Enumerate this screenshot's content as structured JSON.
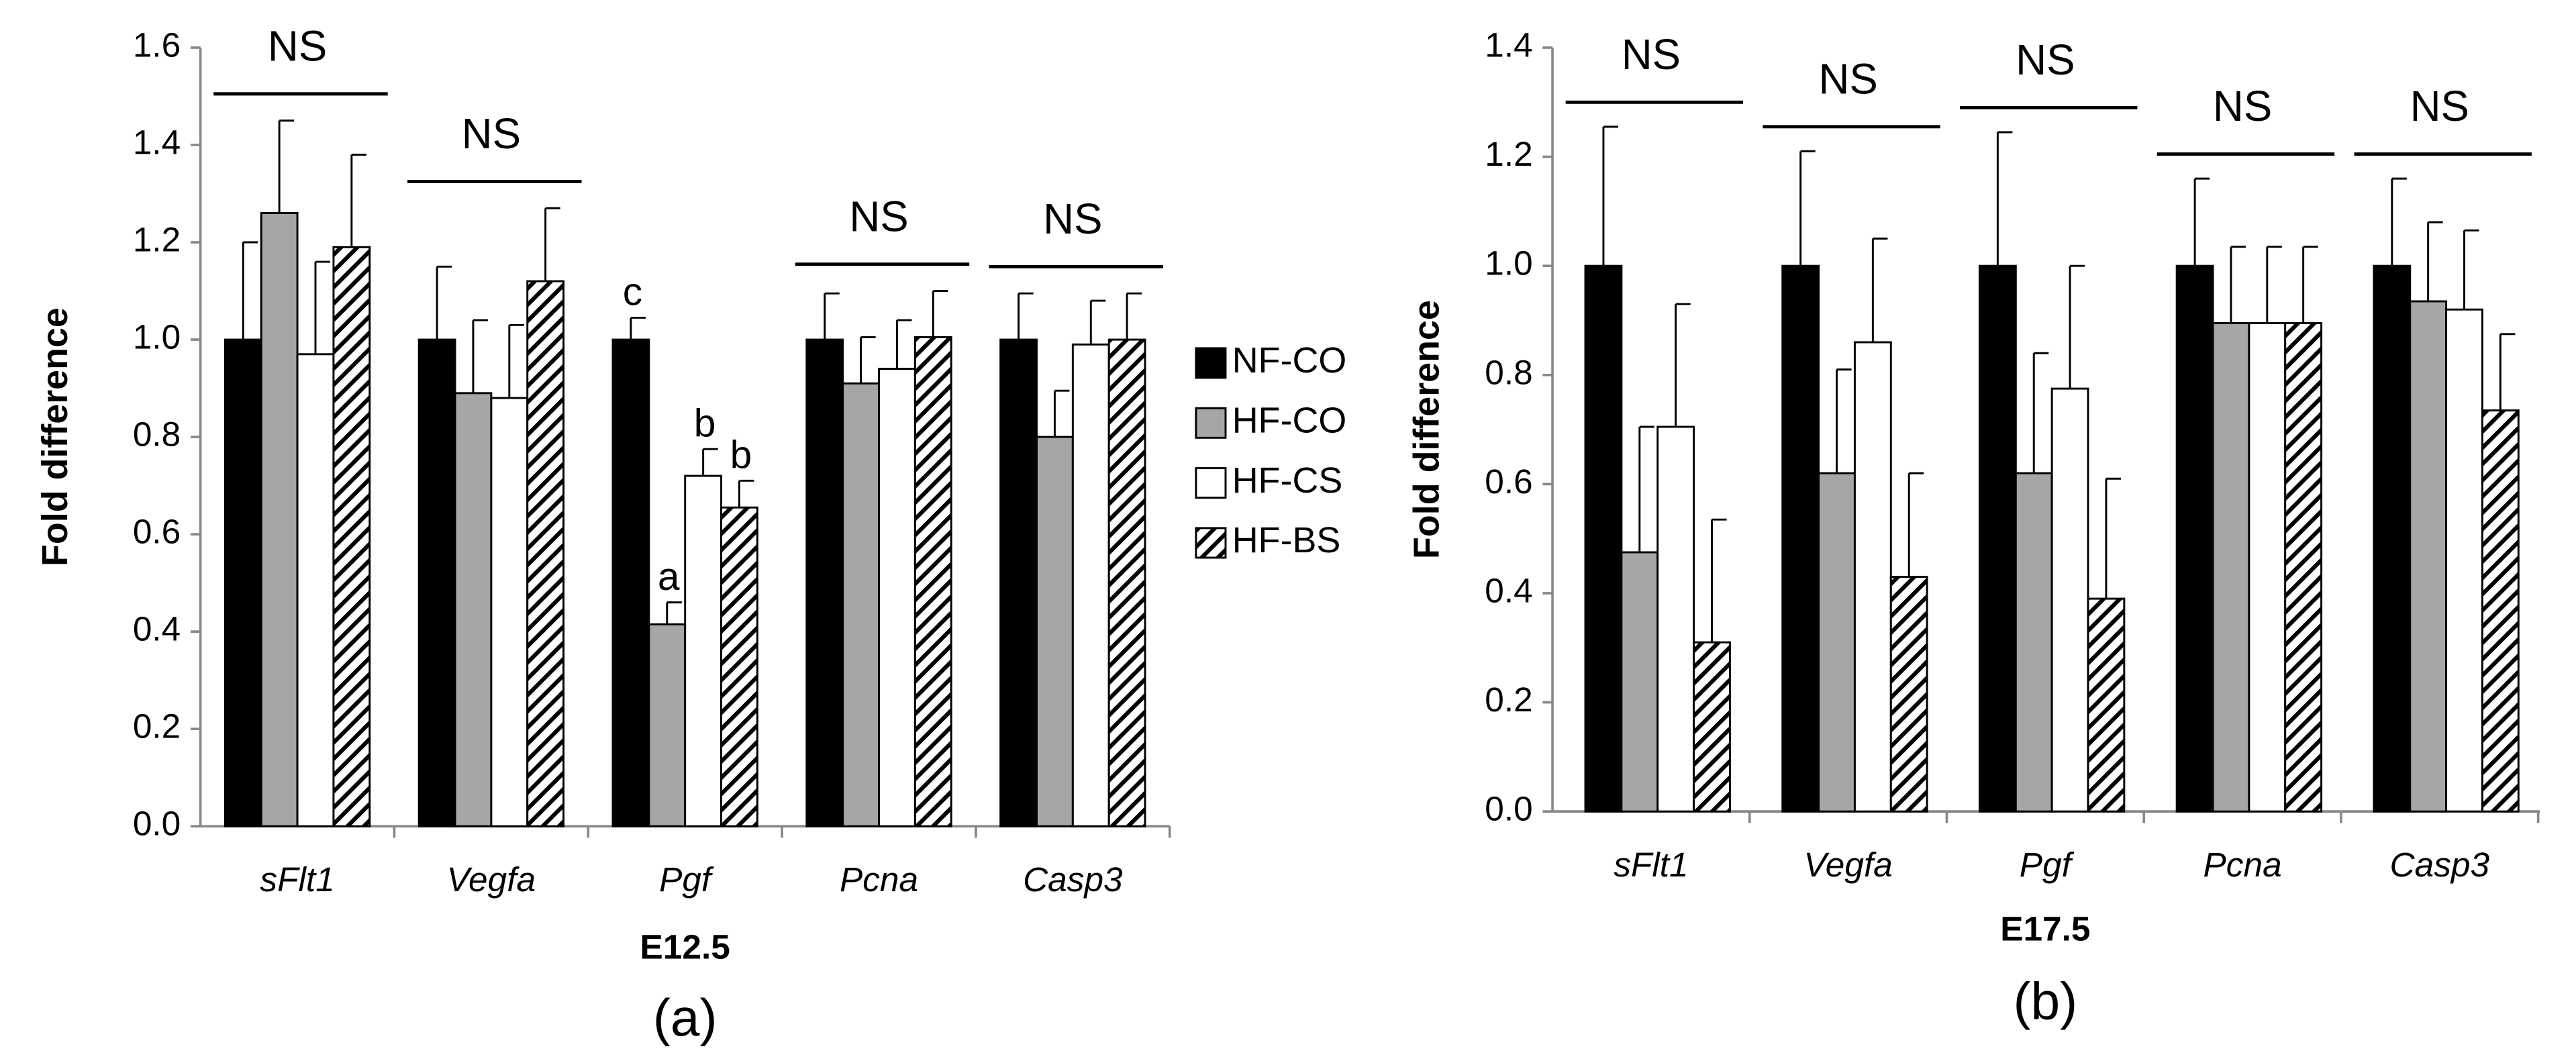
{
  "chart_data": [
    {
      "type": "bar",
      "panel_label": "(a)",
      "xlabel": "E12.5",
      "ylabel": "Fold difference",
      "categories": [
        "sFlt1",
        "Vegfa",
        "Pgf",
        "Pcna",
        "Casp3"
      ],
      "ylim": [
        0,
        1.6
      ],
      "yticks": [
        {
          "value": 0,
          "label": "0.0"
        },
        0.2,
        0.4,
        0.6,
        0.8,
        {
          "value": 1,
          "label": "1.0"
        },
        1.2,
        1.4,
        1.6
      ],
      "series": [
        {
          "name": "NF-CO",
          "color": "#000000",
          "values": [
            1,
            1,
            1,
            1,
            1
          ],
          "errors": [
            0.2,
            0.15,
            0.045,
            0.095,
            0.095
          ],
          "labels": [
            null,
            null,
            "c",
            null,
            null
          ]
        },
        {
          "name": "HF-CO",
          "color": "#a6a6a6",
          "values": [
            1.26,
            0.89,
            0.415,
            0.91,
            0.8
          ],
          "errors": [
            0.19,
            0.15,
            0.045,
            0.095,
            0.095
          ],
          "labels": [
            null,
            null,
            "a",
            null,
            null
          ]
        },
        {
          "name": "HF-CS",
          "color": "#ffffff",
          "values": [
            0.97,
            0.88,
            0.72,
            0.94,
            0.99
          ],
          "errors": [
            0.19,
            0.15,
            0.055,
            0.1,
            0.09
          ],
          "labels": [
            null,
            null,
            "b",
            null,
            null
          ]
        },
        {
          "name": "HF-BS",
          "color": "#ffffff",
          "pattern": "hatch",
          "values": [
            1.19,
            1.12,
            0.655,
            1.005,
            1
          ],
          "errors": [
            0.19,
            0.15,
            0.055,
            0.095,
            0.095
          ],
          "labels": [
            null,
            null,
            "b",
            null,
            null
          ]
        }
      ],
      "annotations": [
        {
          "text": "NS",
          "category": 0
        },
        {
          "text": "NS",
          "category": 1
        },
        {
          "text": "NS",
          "category": 3
        },
        {
          "text": "NS",
          "category": 4
        }
      ]
    },
    {
      "type": "bar",
      "panel_label": "(b)",
      "xlabel": "E17.5",
      "ylabel": "Fold difference",
      "categories": [
        "sFlt1",
        "Vegfa",
        "Pgf",
        "Pcna",
        "Casp3"
      ],
      "ylim": [
        0,
        1.4
      ],
      "yticks": [
        {
          "value": 0,
          "label": "0.0"
        },
        0.2,
        0.4,
        0.6,
        0.8,
        {
          "value": 1,
          "label": "1.0"
        },
        1.2,
        1.4
      ],
      "series": [
        {
          "color": "#000000",
          "values": [
            1,
            1,
            1,
            1,
            1
          ],
          "errors": [
            0.255,
            0.21,
            0.245,
            0.16,
            0.16
          ]
        },
        {
          "color": "#a6a6a6",
          "values": [
            0.475,
            0.62,
            0.62,
            0.895,
            0.935
          ],
          "errors": [
            0.23,
            0.19,
            0.22,
            0.14,
            0.145
          ]
        },
        {
          "color": "#ffffff",
          "values": [
            0.705,
            0.86,
            0.775,
            0.895,
            0.92
          ],
          "errors": [
            0.225,
            0.19,
            0.225,
            0.14,
            0.145
          ]
        },
        {
          "color": "#ffffff",
          "pattern": "hatch",
          "values": [
            0.31,
            0.43,
            0.39,
            0.895,
            0.735
          ],
          "errors": [
            0.225,
            0.19,
            0.22,
            0.14,
            0.14
          ]
        }
      ],
      "annotations": [
        {
          "text": "NS",
          "category": 0
        },
        {
          "text": "NS",
          "category": 1
        },
        {
          "text": "NS",
          "category": 2
        },
        {
          "text": "NS",
          "category": 3
        },
        {
          "text": "NS",
          "category": 4
        }
      ]
    }
  ]
}
